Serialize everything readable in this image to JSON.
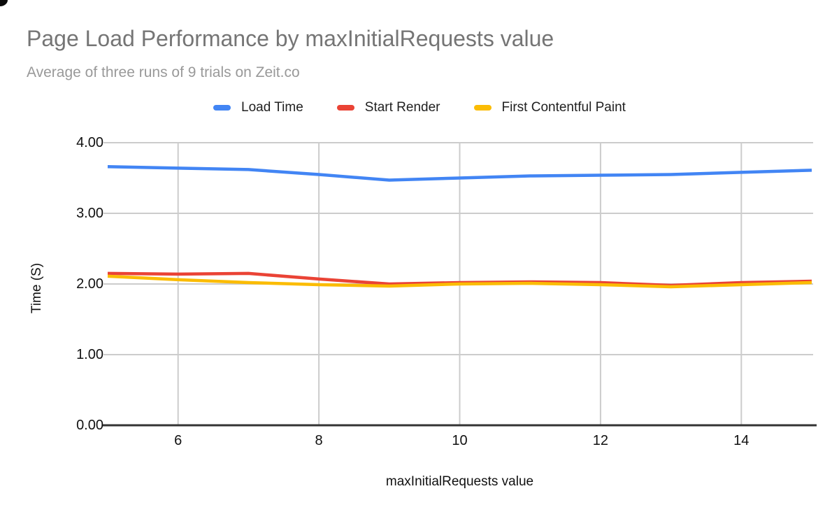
{
  "colors": {
    "background": "#FFFFFF",
    "gridline": "#CCCCCC",
    "axis_line": "#333333",
    "title_text": "#757575",
    "subtitle_text": "#999999",
    "label_text": "#111111",
    "series_blue": "#4285F4",
    "series_red": "#EA4335",
    "series_yellow": "#FBBC04"
  },
  "chart_data": {
    "type": "line",
    "title": "Page Load Performance by maxInitialRequests value",
    "subtitle": "Average of three runs of 9 trials on Zeit.co",
    "xlabel": "maxInitialRequests value",
    "ylabel": "Time (S)",
    "xlim": [
      5,
      15
    ],
    "ylim": [
      0,
      4
    ],
    "grid": true,
    "legend_position": "top",
    "xticks": [
      {
        "v": 6,
        "label": "6"
      },
      {
        "v": 8,
        "label": "8"
      },
      {
        "v": 10,
        "label": "10"
      },
      {
        "v": 12,
        "label": "12"
      },
      {
        "v": 14,
        "label": "14"
      }
    ],
    "yticks": [
      {
        "v": 0,
        "label": "0.00"
      },
      {
        "v": 1,
        "label": "1.00"
      },
      {
        "v": 2,
        "label": "2.00"
      },
      {
        "v": 3,
        "label": "3.00"
      },
      {
        "v": 4,
        "label": "4.00"
      }
    ],
    "x": [
      5,
      6,
      7,
      8,
      9,
      10,
      11,
      12,
      13,
      14,
      15
    ],
    "series": [
      {
        "name": "Load Time",
        "color": "#4285F4",
        "values": [
          3.66,
          3.64,
          3.62,
          3.55,
          3.47,
          3.5,
          3.53,
          3.54,
          3.55,
          3.58,
          3.61
        ]
      },
      {
        "name": "Start Render",
        "color": "#EA4335",
        "values": [
          2.15,
          2.14,
          2.15,
          2.07,
          2.0,
          2.02,
          2.03,
          2.02,
          1.98,
          2.02,
          2.04
        ]
      },
      {
        "name": "First Contentful Paint",
        "color": "#FBBC04",
        "values": [
          2.11,
          2.06,
          2.02,
          1.99,
          1.97,
          2.0,
          2.01,
          1.99,
          1.96,
          1.99,
          2.02
        ]
      }
    ]
  }
}
